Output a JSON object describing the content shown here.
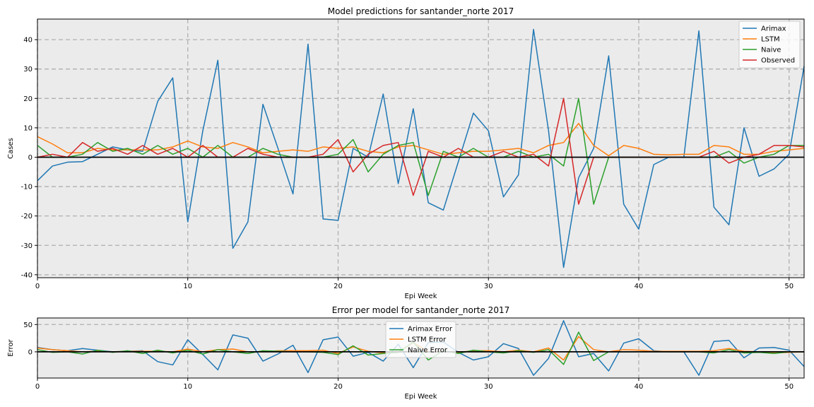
{
  "chart_data": [
    {
      "type": "line",
      "title": "Model predictions for santander_norte 2017",
      "xlabel": "Epi Week",
      "ylabel": "Cases",
      "xlim": [
        0,
        51
      ],
      "ylim": [
        -41,
        47
      ],
      "xticks": [
        0,
        10,
        20,
        30,
        40,
        50
      ],
      "yticks": [
        -40,
        -30,
        -20,
        -10,
        0,
        10,
        20,
        30,
        40
      ],
      "grid": true,
      "legend": "upper right",
      "zero_line": true,
      "series": [
        {
          "name": "Arimax",
          "color": "#1f77b4",
          "values": [
            -8,
            -3,
            -1.7,
            -1.5,
            1,
            3.5,
            2.5,
            2,
            19,
            27,
            -22,
            9,
            33,
            -31,
            -22,
            18,
            3,
            -12.5,
            38.5,
            -21,
            -21.5,
            3,
            0,
            21.5,
            -9,
            16.5,
            -15.5,
            -18,
            -1.5,
            15,
            9,
            -13.5,
            -6,
            43.5,
            9,
            -37.5,
            -7,
            3,
            34.5,
            -16,
            -24.5,
            -2.5,
            0,
            0,
            43,
            -17,
            -23,
            10,
            -6.5,
            -4,
            1,
            31
          ]
        },
        {
          "name": "LSTM",
          "color": "#ff7f0e",
          "values": [
            7,
            4.5,
            1.5,
            1.5,
            3,
            2.5,
            2.5,
            2.5,
            2.5,
            3.5,
            5.5,
            3.5,
            3,
            5,
            3.5,
            1.5,
            2,
            2.5,
            2,
            3.5,
            3,
            3.5,
            2,
            1.5,
            3.5,
            4,
            2.5,
            1,
            1.5,
            2,
            2,
            2.5,
            3,
            1.5,
            4,
            5,
            11.5,
            4,
            0.5,
            4,
            3,
            1,
            0.8,
            1,
            1,
            4,
            3.5,
            1,
            1,
            2,
            2.5,
            3
          ]
        },
        {
          "name": "Naive",
          "color": "#2ca02c",
          "values": [
            4,
            0,
            0,
            1,
            5,
            2,
            3,
            1,
            4,
            1,
            3,
            0,
            4,
            0,
            0,
            3,
            1,
            0,
            0,
            0,
            1,
            6,
            -5,
            1,
            4,
            5,
            -13,
            2,
            0,
            3,
            0,
            0,
            2,
            0,
            1,
            -3,
            20,
            -16,
            0,
            0,
            0,
            0,
            0,
            0,
            0,
            0,
            2,
            -2,
            0,
            1,
            4,
            4
          ]
        },
        {
          "name": "Observed",
          "color": "#d62728",
          "values": [
            0,
            1,
            0,
            5,
            2,
            3,
            1,
            4,
            1,
            3,
            0,
            4,
            0,
            0,
            3,
            1,
            0,
            0,
            0,
            1,
            6,
            -5,
            1,
            4,
            5,
            -13,
            2,
            0,
            3,
            0,
            0,
            2,
            0,
            1,
            -3,
            20,
            -16,
            0,
            0,
            0,
            0,
            0,
            0,
            0,
            0,
            2,
            -2,
            0,
            1,
            4,
            4,
            3.5
          ]
        }
      ]
    },
    {
      "type": "line",
      "title": "Error per model for santander_norte 2017",
      "xlabel": "Epi Week",
      "ylabel": "Error",
      "xlim": [
        0,
        51
      ],
      "ylim": [
        -48,
        62
      ],
      "xticks": [
        0,
        10,
        20,
        30,
        40,
        50
      ],
      "yticks": [
        0,
        50
      ],
      "grid": true,
      "legend": "upper center",
      "zero_line": true,
      "series": [
        {
          "name": "Arimax Error",
          "color": "#1f77b4",
          "values": [
            8,
            4,
            2,
            6,
            3,
            0,
            1,
            2,
            -18,
            -24,
            22,
            -5,
            -33,
            31,
            25,
            -17,
            -4,
            12,
            -38,
            22,
            27,
            -8,
            -1,
            -17,
            14,
            -29,
            17,
            18,
            -1,
            -15,
            -9,
            15,
            6,
            -43,
            -12,
            57,
            -9,
            -3,
            -35,
            16,
            24,
            2,
            0,
            0,
            -43,
            19,
            21,
            -11,
            7,
            8,
            3,
            -27
          ]
        },
        {
          "name": "LSTM Error",
          "color": "#ff7f0e",
          "values": [
            7,
            4,
            2,
            0,
            1,
            0,
            1,
            1,
            1,
            0,
            5,
            0,
            4,
            5,
            0,
            0,
            2,
            2,
            2,
            3,
            -3,
            9,
            1,
            -2,
            -1,
            17,
            0,
            1,
            -1,
            2,
            2,
            0,
            3,
            0,
            7,
            -15,
            28,
            4,
            0,
            4,
            3,
            1,
            1,
            1,
            1,
            2,
            6,
            1,
            0,
            -2,
            -1,
            0
          ]
        },
        {
          "name": "Naive Error",
          "color": "#2ca02c",
          "values": [
            4,
            -1,
            0,
            -4,
            3,
            -1,
            2,
            -3,
            3,
            -2,
            3,
            -4,
            4,
            0,
            -3,
            2,
            1,
            0,
            0,
            -1,
            -5,
            11,
            -6,
            -3,
            -1,
            18,
            -15,
            2,
            -3,
            3,
            0,
            -2,
            2,
            -1,
            4,
            -23,
            36,
            -16,
            0,
            0,
            0,
            0,
            0,
            0,
            0,
            -2,
            4,
            -2,
            -1,
            -3,
            0,
            0
          ]
        }
      ]
    }
  ]
}
